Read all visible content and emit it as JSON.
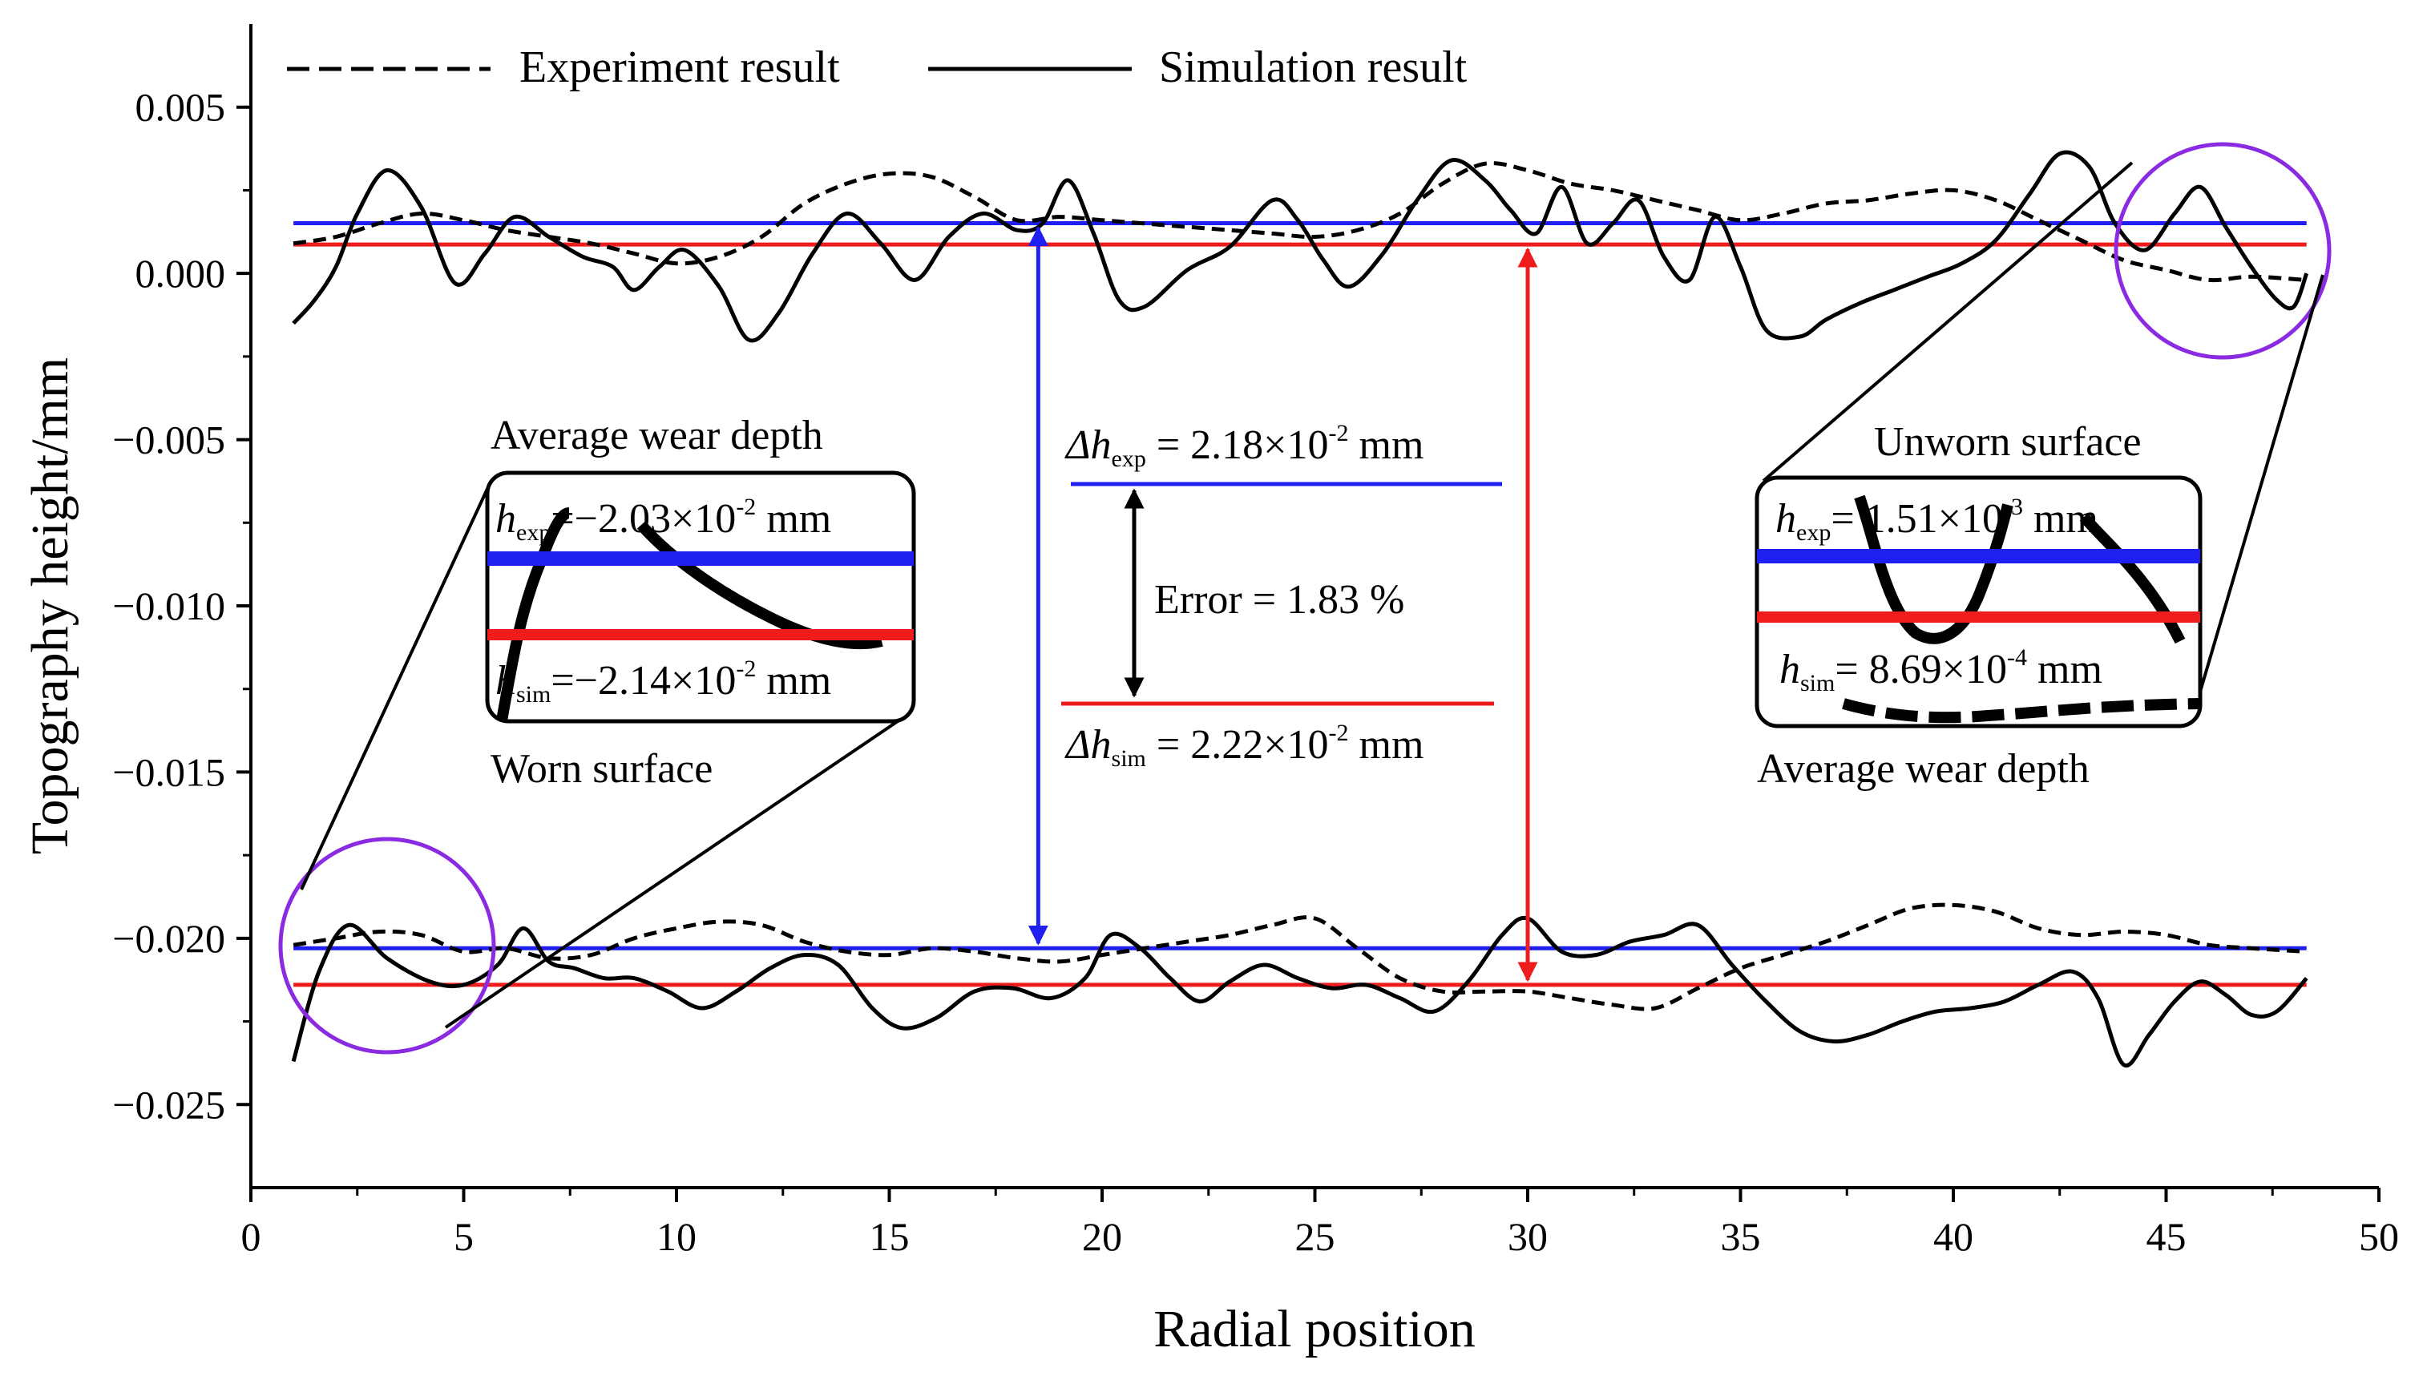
{
  "chart_data": {
    "type": "line",
    "xlabel": "Radial position",
    "ylabel": "Topography height/mm",
    "xlim": [
      0,
      50
    ],
    "ylim": [
      -0.0275,
      0.0075
    ],
    "xticks": [
      "0",
      "5",
      "10",
      "15",
      "20",
      "25",
      "30",
      "35",
      "40",
      "45",
      "50"
    ],
    "yticks": [
      "0.005",
      "0.000",
      "−0.005",
      "−0.010",
      "−0.015",
      "−0.020",
      "−0.025"
    ],
    "ytick_values": [
      0.005,
      0.0,
      -0.005,
      -0.01,
      -0.015,
      -0.02,
      -0.025
    ],
    "grid": false,
    "legend": [
      {
        "label": "Experiment result",
        "style": "dashed"
      },
      {
        "label": "Simulation result",
        "style": "solid"
      }
    ],
    "series": [
      {
        "name": "Experiment result (unworn)",
        "style": "dashed",
        "x": [
          1,
          2,
          3,
          4,
          5,
          6,
          7,
          8,
          9,
          10,
          11,
          12,
          13,
          14,
          15,
          16,
          17,
          18,
          19,
          20,
          21,
          22,
          23,
          24,
          25,
          26,
          27,
          28,
          29,
          30,
          31,
          32,
          33,
          34,
          35,
          36,
          37,
          38,
          39,
          40,
          41,
          42,
          43,
          44,
          45,
          46,
          47,
          48.3
        ],
        "values": [
          0.0009,
          0.0011,
          0.0015,
          0.0018,
          0.0016,
          0.0013,
          0.0011,
          0.0009,
          0.0006,
          0.0003,
          0.0005,
          0.0011,
          0.0021,
          0.0027,
          0.003,
          0.0029,
          0.0023,
          0.0016,
          0.0017,
          0.0016,
          0.0015,
          0.0014,
          0.0013,
          0.0012,
          0.0011,
          0.0013,
          0.0018,
          0.0027,
          0.0033,
          0.0031,
          0.0027,
          0.0025,
          0.0022,
          0.0019,
          0.0016,
          0.0018,
          0.0021,
          0.0022,
          0.0024,
          0.0025,
          0.0022,
          0.0016,
          0.001,
          0.0004,
          0.0001,
          -0.0002,
          -0.0001,
          -0.0002
        ]
      },
      {
        "name": "Simulation result (unworn)",
        "style": "solid",
        "x": [
          1,
          1.5,
          2,
          2.5,
          3.2,
          4,
          4.8,
          5.5,
          6.2,
          7,
          7.8,
          8.5,
          9,
          9.6,
          10.2,
          11,
          11.7,
          12.4,
          13.2,
          14,
          14.8,
          15.6,
          16.4,
          17.2,
          18,
          18.6,
          19.2,
          19.8,
          20.4,
          21,
          22,
          23,
          24,
          24.6,
          25.2,
          25.8,
          26.6,
          27.4,
          28.2,
          29,
          29.6,
          30.2,
          30.8,
          31.4,
          32,
          32.6,
          33.2,
          33.8,
          34.4,
          35,
          35.6,
          36.4,
          37,
          37.8,
          38.6,
          39.4,
          40.2,
          41,
          41.8,
          42.5,
          43.2,
          43.8,
          44.5,
          45.2,
          45.8,
          46.4,
          47.0,
          47.6,
          48.0,
          48.3
        ],
        "values": [
          -0.0015,
          -0.0008,
          0.0002,
          0.0018,
          0.0031,
          0.002,
          -0.0003,
          0.0006,
          0.0017,
          0.0011,
          0.0005,
          0.0002,
          -0.0005,
          0.0002,
          0.0007,
          -0.0004,
          -0.002,
          -0.0012,
          0.0006,
          0.0018,
          0.0009,
          -0.0002,
          0.0011,
          0.0018,
          0.0013,
          0.0015,
          0.0028,
          0.0012,
          -0.0008,
          -0.001,
          0.0001,
          0.0008,
          0.0022,
          0.0016,
          0.0004,
          -0.0004,
          0.0006,
          0.0022,
          0.0034,
          0.0028,
          0.0019,
          0.0012,
          0.0026,
          0.0009,
          0.0015,
          0.0022,
          0.0005,
          -0.0002,
          0.0017,
          0.0002,
          -0.0017,
          -0.0019,
          -0.0014,
          -0.0009,
          -0.0005,
          -0.0001,
          0.0003,
          0.001,
          0.0024,
          0.0036,
          0.0032,
          0.0015,
          0.0007,
          0.0018,
          0.0026,
          0.0014,
          0.0002,
          -0.0008,
          -0.001,
          0.0
        ]
      },
      {
        "name": "Experiment result (worn)",
        "style": "dashed",
        "x": [
          1,
          2,
          3,
          4,
          5,
          6,
          7,
          8,
          9,
          10,
          11,
          12,
          13,
          14,
          15,
          16,
          17,
          18,
          19,
          20,
          21,
          22,
          23,
          24,
          25,
          26,
          27,
          28,
          29,
          30,
          31,
          32,
          33,
          34,
          35,
          36,
          37,
          38,
          39,
          40,
          41,
          42,
          43,
          44,
          45,
          46,
          47,
          48.3
        ],
        "values": [
          -0.0202,
          -0.02,
          -0.0198,
          -0.0199,
          -0.0204,
          -0.0203,
          -0.0206,
          -0.0205,
          -0.02,
          -0.0197,
          -0.0195,
          -0.0196,
          -0.0201,
          -0.0204,
          -0.0205,
          -0.0203,
          -0.0204,
          -0.0206,
          -0.0207,
          -0.0205,
          -0.0203,
          -0.0201,
          -0.0199,
          -0.0196,
          -0.0194,
          -0.0203,
          -0.0212,
          -0.0216,
          -0.0216,
          -0.0216,
          -0.0218,
          -0.022,
          -0.0221,
          -0.0215,
          -0.0209,
          -0.0205,
          -0.0201,
          -0.0196,
          -0.0191,
          -0.019,
          -0.0192,
          -0.0197,
          -0.0199,
          -0.0198,
          -0.0199,
          -0.0202,
          -0.0203,
          -0.0204
        ]
      },
      {
        "name": "Simulation result (worn)",
        "style": "solid",
        "x": [
          1,
          1.6,
          2.3,
          3.2,
          4.2,
          5,
          5.8,
          6.4,
          7,
          7.6,
          8.3,
          9,
          9.8,
          10.6,
          11.4,
          12.2,
          13.0,
          13.8,
          14.6,
          15.3,
          16.1,
          17,
          17.9,
          18.8,
          19.6,
          20.2,
          20.9,
          21.6,
          22.3,
          23.0,
          23.8,
          24.6,
          25.4,
          26.2,
          27.0,
          27.8,
          28.6,
          29.4,
          30,
          30.8,
          31.6,
          32.4,
          33.2,
          34.0,
          34.8,
          35.6,
          36.4,
          37.2,
          38.0,
          38.8,
          39.6,
          40.4,
          41.2,
          42.0,
          42.8,
          43.4,
          44.0,
          44.6,
          45.2,
          45.8,
          46.4,
          47.0,
          47.6,
          48.3
        ],
        "values": [
          -0.0237,
          -0.021,
          -0.0196,
          -0.0206,
          -0.0213,
          -0.0214,
          -0.0208,
          -0.0197,
          -0.0207,
          -0.0209,
          -0.0212,
          -0.0212,
          -0.0216,
          -0.0221,
          -0.0216,
          -0.0209,
          -0.0205,
          -0.0208,
          -0.0221,
          -0.0227,
          -0.0224,
          -0.0216,
          -0.0215,
          -0.0218,
          -0.0212,
          -0.0199,
          -0.0203,
          -0.0212,
          -0.0219,
          -0.0213,
          -0.0208,
          -0.0212,
          -0.0215,
          -0.0214,
          -0.0218,
          -0.0222,
          -0.0213,
          -0.0199,
          -0.0194,
          -0.0204,
          -0.0205,
          -0.0201,
          -0.0199,
          -0.0196,
          -0.0208,
          -0.0219,
          -0.0228,
          -0.0231,
          -0.0229,
          -0.0225,
          -0.0222,
          -0.0221,
          -0.0219,
          -0.0214,
          -0.021,
          -0.0218,
          -0.0238,
          -0.0229,
          -0.0219,
          -0.0213,
          -0.0217,
          -0.0223,
          -0.0222,
          -0.0212
        ]
      }
    ],
    "reference_lines": [
      {
        "name": "Experiment mean (unworn)",
        "color": "#1f1ff0",
        "value": 0.00151,
        "x_range": [
          1,
          48.3
        ]
      },
      {
        "name": "Simulation mean (unworn)",
        "color": "#ee1c1c",
        "value": 0.000869,
        "x_range": [
          1,
          48.3
        ]
      },
      {
        "name": "Experiment mean (worn)",
        "color": "#1f1ff0",
        "value": -0.0203,
        "x_range": [
          1,
          48.3
        ]
      },
      {
        "name": "Simulation mean (worn)",
        "color": "#ee1c1c",
        "value": -0.0214,
        "x_range": [
          1,
          48.3
        ]
      }
    ],
    "arrows": [
      {
        "name": "delta-exp-arrow",
        "color": "#1f1ff0",
        "x": 18.5,
        "from": 0.00151,
        "to": -0.0203
      },
      {
        "name": "delta-sim-arrow",
        "color": "#ee1c1c",
        "x": 30,
        "from": 0.000869,
        "to": -0.0214
      }
    ],
    "annotations": {
      "left_inset": {
        "title": "Average wear depth",
        "exp_label": "h",
        "exp_sub": "exp",
        "exp_text": "=−2.03×10",
        "exp_sup": "-2",
        "exp_unit": " mm",
        "sim_label": "h",
        "sim_sub": "sim",
        "sim_text": "=−2.14×10",
        "sim_sup": "-2",
        "sim_unit": " mm",
        "caption": "Worn surface"
      },
      "right_inset": {
        "title": "Unworn surface",
        "exp_label": "h",
        "exp_sub": "exp",
        "exp_text": "= 1.51×10",
        "exp_sup": "-3",
        "exp_unit": " mm",
        "sim_label": "h",
        "sim_sub": "sim",
        "sim_text": "= 8.69×10",
        "sim_sup": "-4",
        "sim_unit": " mm",
        "caption": "Average wear depth"
      },
      "center": {
        "dexp_symbol": "Δh",
        "dexp_sub": "exp",
        "dexp_text": " = 2.18×10",
        "dexp_sup": "-2",
        "dexp_unit": " mm",
        "error_text": "Error = 1.83 %",
        "dsim_symbol": "Δh",
        "dsim_sub": "sim",
        "dsim_text": " = 2.22×10",
        "dsim_sup": "-2",
        "dsim_unit": " mm"
      }
    },
    "colors": {
      "experiment_mean": "#1f1ff0",
      "simulation_mean": "#ee1c1c",
      "highlight_circle": "#8a2be2"
    }
  }
}
